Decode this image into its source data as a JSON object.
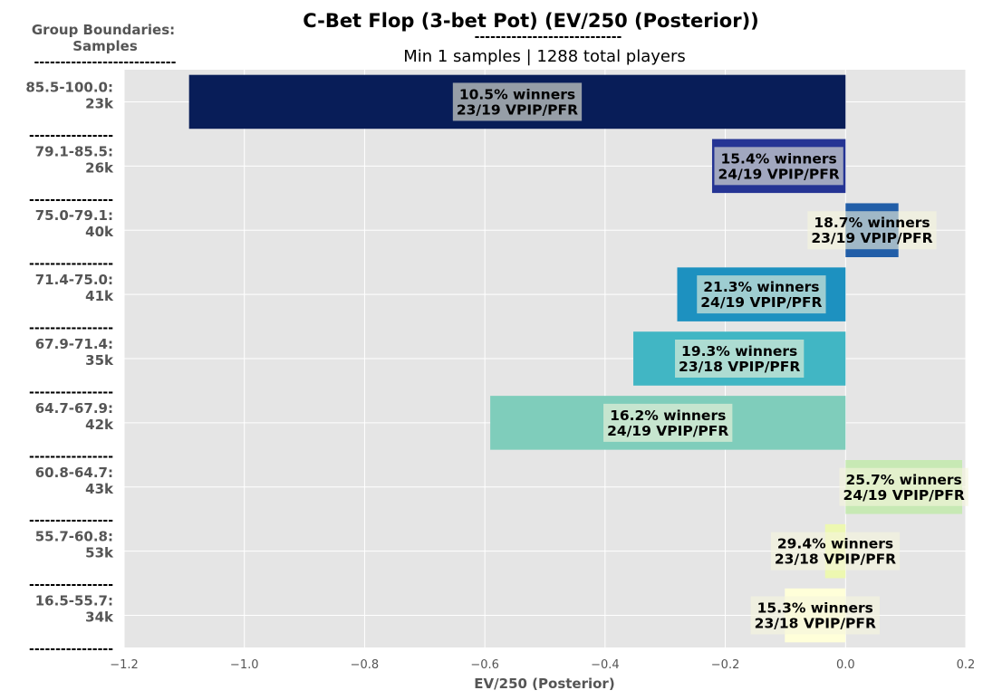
{
  "header": {
    "title": "C-Bet Flop (3-bet Pot) (EV/250 (Posterior))",
    "title_underline": "----------------------------",
    "subtitle": "Min 1 samples | 1288 total players"
  },
  "left_header": {
    "line1": "Group Boundaries:",
    "line2": "Samples",
    "dashes": "---------------------------"
  },
  "row_separator": "----------------",
  "colors": {
    "plot_background": "#e5e5e5",
    "grid": "#ffffff",
    "label_box": "#f5f5dc"
  },
  "chart_data": {
    "type": "bar",
    "orientation": "horizontal",
    "title": "C-Bet Flop (3-bet Pot) (EV/250 (Posterior))",
    "subtitle": "Min 1 samples | 1288 total players",
    "xlabel": "EV/250 (Posterior)",
    "ylabel": "",
    "xlim": [
      -1.2,
      0.2
    ],
    "xticks": [
      -1.2,
      -1.0,
      -0.8,
      -0.6,
      -0.4,
      -0.2,
      0.0,
      0.2
    ],
    "xtick_labels": [
      "−1.2",
      "−1.0",
      "−0.8",
      "−0.6",
      "−0.4",
      "−0.2",
      "0.0",
      "0.2"
    ],
    "grid": true,
    "legend": "none",
    "categories": [
      {
        "range": "85.5-100.0:",
        "samples": "23k",
        "value": -1.092,
        "winners": "10.5% winners",
        "vpip_pfr": "23/19 VPIP/PFR",
        "color": "#081d58"
      },
      {
        "range": "79.1-85.5:",
        "samples": "26k",
        "value": -0.222,
        "winners": "15.4% winners",
        "vpip_pfr": "24/19 VPIP/PFR",
        "color": "#253494"
      },
      {
        "range": "75.0-79.1:",
        "samples": "40k",
        "value": 0.088,
        "winners": "18.7% winners",
        "vpip_pfr": "23/19 VPIP/PFR",
        "color": "#225ea8"
      },
      {
        "range": "71.4-75.0:",
        "samples": "41k",
        "value": -0.28,
        "winners": "21.3% winners",
        "vpip_pfr": "24/19 VPIP/PFR",
        "color": "#1d91c0"
      },
      {
        "range": "67.9-71.4:",
        "samples": "35k",
        "value": -0.353,
        "winners": "19.3% winners",
        "vpip_pfr": "23/18 VPIP/PFR",
        "color": "#41b6c4"
      },
      {
        "range": "64.7-67.9:",
        "samples": "42k",
        "value": -0.591,
        "winners": "16.2% winners",
        "vpip_pfr": "24/19 VPIP/PFR",
        "color": "#7fcdbb"
      },
      {
        "range": "60.8-64.7:",
        "samples": "43k",
        "value": 0.194,
        "winners": "25.7% winners",
        "vpip_pfr": "24/19 VPIP/PFR",
        "color": "#c7e9b4"
      },
      {
        "range": "55.7-60.8:",
        "samples": "53k",
        "value": -0.034,
        "winners": "29.4% winners",
        "vpip_pfr": "23/18 VPIP/PFR",
        "color": "#edf8b1"
      },
      {
        "range": "16.5-55.7:",
        "samples": "34k",
        "value": -0.101,
        "winners": "15.3% winners",
        "vpip_pfr": "23/18 VPIP/PFR",
        "color": "#ffffd9"
      }
    ]
  }
}
